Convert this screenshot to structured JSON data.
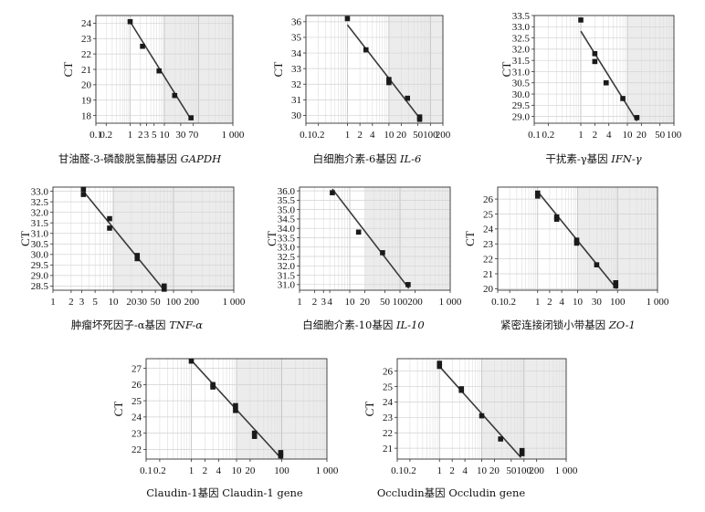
{
  "chart_data": [
    {
      "type": "scatter",
      "caption": "甘油醛-3-磷酸脱氢酶基因",
      "caption_gene": "GAPDH",
      "caption_gene_italic": true,
      "ylabel": "CT",
      "xscale": "log",
      "xlim": [
        0.1,
        1000
      ],
      "ylim": [
        17.5,
        24.5
      ],
      "xticks": [
        0.1,
        0.2,
        1,
        2,
        3,
        5,
        10,
        30,
        70,
        1000
      ],
      "xtick_labels": [
        "0.1",
        "0.2",
        "1",
        "2",
        "3",
        "5",
        "10",
        "30",
        "70",
        "1 000"
      ],
      "yticks": [
        18,
        19,
        20,
        21,
        22,
        23,
        24
      ],
      "ytick_labels": [
        "18",
        "19",
        "20",
        "21",
        "22",
        "23",
        "24"
      ],
      "shade_start": 10,
      "points": [
        [
          1,
          24.1
        ],
        [
          2.3,
          22.5
        ],
        [
          7,
          20.9
        ],
        [
          20,
          19.3
        ],
        [
          60,
          17.85
        ]
      ],
      "fit": [
        [
          1,
          24.1
        ],
        [
          60,
          17.75
        ]
      ]
    },
    {
      "type": "scatter",
      "caption": "白细胞介素-6基因",
      "caption_gene": "IL-6",
      "caption_gene_italic": true,
      "ylabel": "CT",
      "xscale": "log",
      "xlim": [
        0.1,
        200
      ],
      "ylim": [
        29.5,
        36.4
      ],
      "xticks": [
        0.1,
        0.2,
        1,
        2,
        4,
        10,
        20,
        50,
        100,
        200
      ],
      "xtick_labels": [
        "0.1",
        "0.2",
        "1",
        "2",
        "4",
        "10",
        "20",
        "50",
        "100",
        "200"
      ],
      "yticks": [
        30,
        31,
        32,
        33,
        34,
        35,
        36
      ],
      "ytick_labels": [
        "30",
        "31",
        "32",
        "33",
        "34",
        "35",
        "36"
      ],
      "shade_start": 10,
      "points": [
        [
          1,
          36.2
        ],
        [
          2.8,
          34.2
        ],
        [
          10,
          32.3
        ],
        [
          10,
          32.1
        ],
        [
          28,
          31.1
        ],
        [
          55,
          29.9
        ],
        [
          55,
          29.75
        ]
      ],
      "fit": [
        [
          1,
          35.8
        ],
        [
          60,
          29.7
        ]
      ]
    },
    {
      "type": "scatter",
      "caption": "干扰素-γ基因",
      "caption_gene": "IFN-γ",
      "caption_gene_italic": true,
      "ylabel": "CT",
      "xscale": "log",
      "xlim": [
        0.1,
        100
      ],
      "ylim": [
        28.7,
        33.5
      ],
      "xticks": [
        0.1,
        0.2,
        1,
        2,
        4,
        10,
        20,
        50,
        100
      ],
      "xtick_labels": [
        "0.1",
        "0.2",
        "1",
        "2",
        "4",
        "10",
        "20",
        "50",
        "100"
      ],
      "yticks": [
        29.0,
        29.5,
        30.0,
        30.5,
        31.0,
        31.5,
        32.0,
        32.5,
        33.0,
        33.5
      ],
      "ytick_labels": [
        "29.0",
        "29.5",
        "30.0",
        "30.5",
        "31.0",
        "31.5",
        "32.0",
        "32.5",
        "33.0",
        "33.5"
      ],
      "shade_start": 10,
      "points": [
        [
          1,
          33.3
        ],
        [
          2,
          31.8
        ],
        [
          2,
          31.45
        ],
        [
          3.5,
          30.5
        ],
        [
          8,
          29.8
        ],
        [
          16,
          28.95
        ]
      ],
      "fit": [
        [
          1,
          32.8
        ],
        [
          16,
          28.8
        ]
      ]
    },
    {
      "type": "scatter",
      "caption": "肿瘤坏死因子-α基因",
      "caption_gene": "TNF-α",
      "caption_gene_italic": true,
      "ylabel": "CT",
      "xscale": "log",
      "xlim": [
        1,
        1000
      ],
      "ylim": [
        28.3,
        33.2
      ],
      "xticks": [
        1,
        2,
        3,
        5,
        10,
        20,
        30,
        50,
        100,
        200,
        1000
      ],
      "xtick_labels": [
        "1",
        "2",
        "3",
        "5",
        "10",
        "20",
        "30",
        "50",
        "100",
        "200",
        "1 000"
      ],
      "yticks": [
        28.5,
        29.0,
        29.5,
        30.0,
        30.5,
        31.0,
        31.5,
        32.0,
        32.5,
        33.0
      ],
      "ytick_labels": [
        "28.5",
        "29.0",
        "29.5",
        "30.0",
        "30.5",
        "31.0",
        "31.5",
        "32.0",
        "32.5",
        "33.0"
      ],
      "shade_start": 10,
      "points": [
        [
          3.2,
          33.1
        ],
        [
          3.2,
          32.85
        ],
        [
          8.7,
          31.7
        ],
        [
          8.7,
          31.25
        ],
        [
          25,
          29.95
        ],
        [
          25,
          29.8
        ],
        [
          70,
          28.5
        ],
        [
          70,
          28.35
        ]
      ],
      "fit": [
        [
          3.2,
          33.0
        ],
        [
          70,
          28.3
        ]
      ]
    },
    {
      "type": "scatter",
      "caption": "白细胞介素-10基因",
      "caption_gene": "IL-10",
      "caption_gene_italic": true,
      "ylabel": "CT",
      "xscale": "log",
      "xlim": [
        1,
        1000
      ],
      "ylim": [
        30.7,
        36.2
      ],
      "xticks": [
        1,
        2,
        3,
        4,
        10,
        20,
        50,
        100,
        200,
        1000
      ],
      "xtick_labels": [
        "1",
        "2",
        "3",
        "4",
        "10",
        "20",
        "50",
        "100",
        "200",
        "1 000"
      ],
      "yticks": [
        31.0,
        31.5,
        32.0,
        32.5,
        33.0,
        33.5,
        34.0,
        34.5,
        35.0,
        35.5,
        36.0
      ],
      "ytick_labels": [
        "31.0",
        "31.5",
        "32.0",
        "32.5",
        "33.0",
        "33.5",
        "34.0",
        "34.5",
        "35.0",
        "35.5",
        "36.0"
      ],
      "shade_start": 20,
      "points": [
        [
          4.5,
          35.9
        ],
        [
          15,
          33.8
        ],
        [
          45,
          32.7
        ],
        [
          145,
          31.0
        ]
      ],
      "fit": [
        [
          4.5,
          36.1
        ],
        [
          150,
          30.8
        ]
      ]
    },
    {
      "type": "scatter",
      "caption": "紧密连接闭锁小带基因",
      "caption_gene": "ZO-1",
      "caption_gene_italic": true,
      "ylabel": "CT",
      "xscale": "log",
      "xlim": [
        0.1,
        1000
      ],
      "ylim": [
        19.9,
        26.8
      ],
      "xticks": [
        0.1,
        0.2,
        1,
        2,
        4,
        10,
        30,
        100,
        1000
      ],
      "xtick_labels": [
        "0.1",
        "0.2",
        "1",
        "2",
        "4",
        "10",
        "30",
        "100",
        "1 000"
      ],
      "yticks": [
        20,
        21,
        22,
        23,
        24,
        25,
        26
      ],
      "ytick_labels": [
        "20",
        "21",
        "22",
        "23",
        "24",
        "25",
        "26"
      ],
      "shade_start": 10,
      "points": [
        [
          1,
          26.4
        ],
        [
          1,
          26.2
        ],
        [
          3,
          24.8
        ],
        [
          3,
          24.65
        ],
        [
          9.5,
          23.25
        ],
        [
          9.5,
          23.05
        ],
        [
          30,
          21.6
        ],
        [
          90,
          20.4
        ],
        [
          90,
          20.2
        ]
      ],
      "fit": [
        [
          1,
          26.5
        ],
        [
          95,
          20.0
        ]
      ]
    },
    {
      "type": "scatter",
      "caption": "Claudin-1基因",
      "caption_gene": "Claudin-1 gene",
      "caption_gene_italic": false,
      "ylabel": "CT",
      "xscale": "log",
      "xlim": [
        0.1,
        1000
      ],
      "ylim": [
        21.4,
        27.6
      ],
      "xticks": [
        0.1,
        0.2,
        1,
        2,
        4,
        10,
        20,
        100,
        1000
      ],
      "xtick_labels": [
        "0.1",
        "0.2",
        "1",
        "2",
        "4",
        "10",
        "20",
        "100",
        "1 000"
      ],
      "yticks": [
        22,
        23,
        24,
        25,
        26,
        27
      ],
      "ytick_labels": [
        "22",
        "23",
        "24",
        "25",
        "26",
        "27"
      ],
      "shade_start": 10,
      "points": [
        [
          1,
          27.45
        ],
        [
          3,
          26.0
        ],
        [
          3,
          25.85
        ],
        [
          9.5,
          24.7
        ],
        [
          9.5,
          24.4
        ],
        [
          25,
          23.0
        ],
        [
          25,
          22.8
        ],
        [
          95,
          21.8
        ],
        [
          95,
          21.6
        ]
      ],
      "fit": [
        [
          1,
          27.5
        ],
        [
          100,
          21.4
        ]
      ]
    },
    {
      "type": "scatter",
      "caption": "Occludin基因",
      "caption_gene": "Occludin gene",
      "caption_gene_italic": false,
      "ylabel": "CT",
      "xscale": "log",
      "xlim": [
        0.1,
        1000
      ],
      "ylim": [
        20.3,
        26.8
      ],
      "xticks": [
        0.1,
        0.2,
        1,
        2,
        4,
        10,
        20,
        50,
        100,
        200,
        1000
      ],
      "xtick_labels": [
        "0.1",
        "0.2",
        "1",
        "2",
        "4",
        "10",
        "20",
        "50",
        "100",
        "200",
        "1 000"
      ],
      "yticks": [
        21,
        22,
        23,
        24,
        25,
        26
      ],
      "ytick_labels": [
        "21",
        "22",
        "23",
        "24",
        "25",
        "26"
      ],
      "shade_start": 10,
      "points": [
        [
          1,
          26.5
        ],
        [
          1,
          26.3
        ],
        [
          3.3,
          24.85
        ],
        [
          3.3,
          24.75
        ],
        [
          10,
          23.1
        ],
        [
          28,
          21.6
        ],
        [
          90,
          20.85
        ],
        [
          90,
          20.65
        ]
      ],
      "fit": [
        [
          1,
          26.3
        ],
        [
          85,
          20.4
        ]
      ]
    }
  ]
}
